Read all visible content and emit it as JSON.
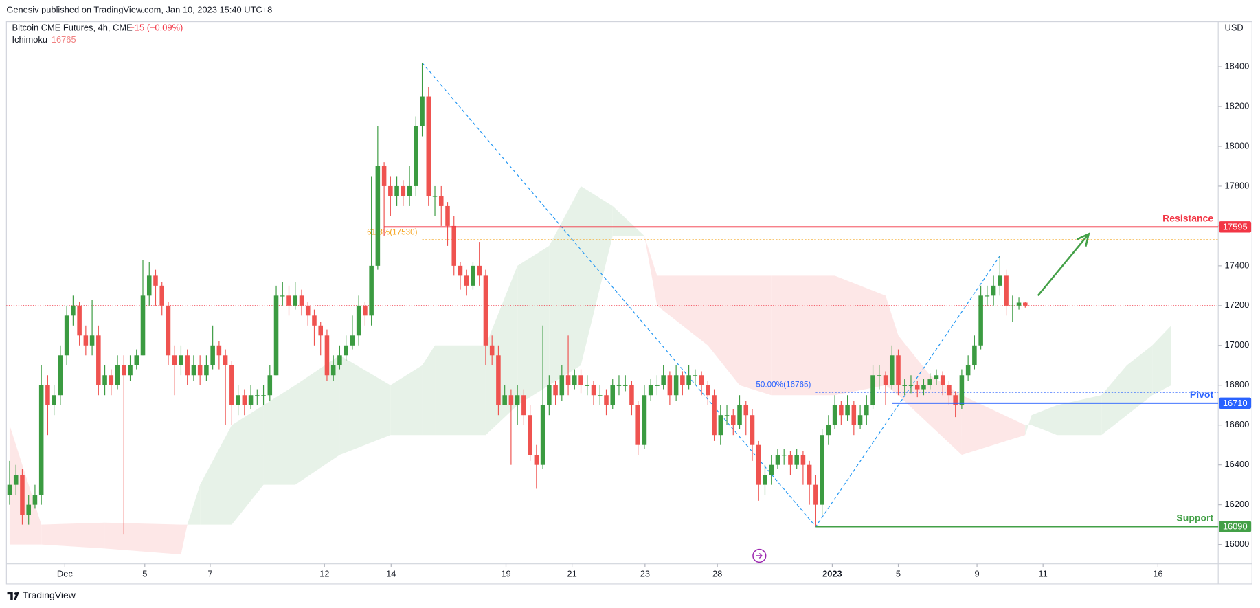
{
  "header": {
    "publisher": "Genesiv published on TradingView.com, Jan 10, 2023 15:40 UTC+8"
  },
  "chart_data": {
    "type": "candlestick",
    "title": "Bitcoin CME Futures, 4h, CME",
    "change": "−15 (−0.09%)",
    "indicator": {
      "name": "Ichimoku",
      "value": 16765
    },
    "currency": "USD",
    "up_color": "#3b9b41",
    "down_color": "#ef5350",
    "candles": [
      [
        16250,
        16420,
        16200,
        16300
      ],
      [
        16300,
        16400,
        16250,
        16350
      ],
      [
        16350,
        16380,
        16100,
        16150
      ],
      [
        16150,
        16250,
        16100,
        16200
      ],
      [
        16200,
        16300,
        16180,
        16250
      ],
      [
        16250,
        16900,
        16200,
        16800
      ],
      [
        16800,
        16850,
        16550,
        16700
      ],
      [
        16700,
        16800,
        16650,
        16750
      ],
      [
        16750,
        17000,
        16700,
        16950
      ],
      [
        16950,
        17200,
        16900,
        17150
      ],
      [
        17150,
        17250,
        17100,
        17200
      ],
      [
        17200,
        17220,
        17000,
        17050
      ],
      [
        17050,
        17100,
        16950,
        17000
      ],
      [
        17000,
        17230,
        16950,
        17050
      ],
      [
        17050,
        17100,
        16750,
        16800
      ],
      [
        16800,
        16900,
        16750,
        16850
      ],
      [
        16850,
        16880,
        16750,
        16800
      ],
      [
        16800,
        16950,
        16780,
        16900
      ],
      [
        16900,
        16950,
        16050,
        16850
      ],
      [
        16850,
        16950,
        16820,
        16900
      ],
      [
        16900,
        16980,
        16880,
        16950
      ],
      [
        16950,
        17430,
        16950,
        17250
      ],
      [
        17250,
        17420,
        17200,
        17350
      ],
      [
        17350,
        17380,
        17200,
        17300
      ],
      [
        17300,
        17320,
        17150,
        17200
      ],
      [
        17200,
        17220,
        16900,
        16950
      ],
      [
        16950,
        17000,
        16750,
        16900
      ],
      [
        16900,
        17000,
        16850,
        16950
      ],
      [
        16950,
        16980,
        16800,
        16850
      ],
      [
        16850,
        16950,
        16820,
        16900
      ],
      [
        16900,
        16950,
        16800,
        16850
      ],
      [
        16850,
        16950,
        16820,
        16900
      ],
      [
        16900,
        17100,
        16880,
        17000
      ],
      [
        17000,
        17020,
        16880,
        16950
      ],
      [
        16950,
        16980,
        16600,
        16900
      ],
      [
        16900,
        16920,
        16600,
        16700
      ],
      [
        16700,
        16800,
        16650,
        16750
      ],
      [
        16750,
        16780,
        16650,
        16700
      ],
      [
        16700,
        16800,
        16680,
        16750
      ],
      [
        16750,
        16780,
        16700,
        16750
      ],
      [
        16750,
        16800,
        16700,
        16750
      ],
      [
        16750,
        16900,
        16720,
        16850
      ],
      [
        16850,
        17300,
        16850,
        17250
      ],
      [
        17250,
        17320,
        17200,
        17250
      ],
      [
        17250,
        17300,
        17150,
        17200
      ],
      [
        17200,
        17320,
        17180,
        17250
      ],
      [
        17250,
        17280,
        17150,
        17200
      ],
      [
        17200,
        17220,
        17100,
        17150
      ],
      [
        17150,
        17180,
        17000,
        17100
      ],
      [
        17100,
        17120,
        16950,
        17050
      ],
      [
        17050,
        17080,
        16820,
        16850
      ],
      [
        16850,
        16950,
        16820,
        16900
      ],
      [
        16900,
        17000,
        16880,
        16950
      ],
      [
        16950,
        17050,
        16920,
        17000
      ],
      [
        17000,
        17150,
        16980,
        17050
      ],
      [
        17050,
        17250,
        17000,
        17200
      ],
      [
        17200,
        17220,
        17100,
        17150
      ],
      [
        17150,
        17850,
        17100,
        17400
      ],
      [
        17400,
        18100,
        17380,
        17900
      ],
      [
        17900,
        17920,
        17550,
        17800
      ],
      [
        17800,
        17850,
        17650,
        17750
      ],
      [
        17750,
        17850,
        17700,
        17800
      ],
      [
        17800,
        17830,
        17700,
        17750
      ],
      [
        17750,
        17900,
        17700,
        17800
      ],
      [
        17800,
        18150,
        17750,
        18100
      ],
      [
        18100,
        18420,
        18050,
        18250
      ],
      [
        18250,
        18300,
        17700,
        17750
      ],
      [
        17750,
        17800,
        17650,
        17750
      ],
      [
        17750,
        17800,
        17600,
        17700
      ],
      [
        17700,
        17720,
        17500,
        17600
      ],
      [
        17600,
        17650,
        17350,
        17400
      ],
      [
        17400,
        17420,
        17280,
        17350
      ],
      [
        17350,
        17380,
        17250,
        17300
      ],
      [
        17300,
        17420,
        17280,
        17400
      ],
      [
        17400,
        17520,
        17300,
        17350
      ],
      [
        17350,
        17380,
        16900,
        17000
      ],
      [
        17000,
        17050,
        16900,
        16950
      ],
      [
        16950,
        17000,
        16650,
        16700
      ],
      [
        16700,
        16800,
        16700,
        16750
      ],
      [
        16750,
        16780,
        16400,
        16700
      ],
      [
        16700,
        16800,
        16600,
        16750
      ],
      [
        16750,
        16780,
        16600,
        16650
      ],
      [
        16650,
        16700,
        16420,
        16450
      ],
      [
        16450,
        16500,
        16280,
        16400
      ],
      [
        16400,
        17100,
        16380,
        16700
      ],
      [
        16700,
        16850,
        16650,
        16800
      ],
      [
        16800,
        16820,
        16700,
        16750
      ],
      [
        16750,
        16900,
        16720,
        16850
      ],
      [
        16850,
        17050,
        16750,
        16800
      ],
      [
        16800,
        16880,
        16780,
        16850
      ],
      [
        16850,
        16880,
        16760,
        16800
      ],
      [
        16800,
        16850,
        16750,
        16800
      ],
      [
        16800,
        16820,
        16700,
        16750
      ],
      [
        16750,
        16800,
        16700,
        16750
      ],
      [
        16750,
        16780,
        16650,
        16700
      ],
      [
        16700,
        16830,
        16680,
        16800
      ],
      [
        16800,
        16850,
        16750,
        16800
      ],
      [
        16800,
        16850,
        16770,
        16800
      ],
      [
        16800,
        16820,
        16650,
        16700
      ],
      [
        16700,
        16720,
        16450,
        16500
      ],
      [
        16500,
        16800,
        16480,
        16750
      ],
      [
        16750,
        16830,
        16720,
        16800
      ],
      [
        16800,
        16850,
        16750,
        16800
      ],
      [
        16800,
        16900,
        16780,
        16850
      ],
      [
        16850,
        16870,
        16700,
        16750
      ],
      [
        16750,
        16900,
        16720,
        16850
      ],
      [
        16850,
        16870,
        16750,
        16800
      ],
      [
        16800,
        16900,
        16780,
        16850
      ],
      [
        16850,
        16880,
        16800,
        16850
      ],
      [
        16850,
        16870,
        16750,
        16800
      ],
      [
        16800,
        16820,
        16700,
        16750
      ],
      [
        16750,
        16780,
        16520,
        16550
      ],
      [
        16550,
        16700,
        16500,
        16650
      ],
      [
        16650,
        16700,
        16600,
        16650
      ],
      [
        16650,
        16680,
        16550,
        16600
      ],
      [
        16600,
        16750,
        16580,
        16700
      ],
      [
        16700,
        16720,
        16550,
        16650
      ],
      [
        16650,
        16680,
        16420,
        16500
      ],
      [
        16500,
        16520,
        16220,
        16300
      ],
      [
        16300,
        16400,
        16250,
        16350
      ],
      [
        16350,
        16450,
        16300,
        16400
      ],
      [
        16400,
        16480,
        16380,
        16450
      ],
      [
        16450,
        16480,
        16400,
        16450
      ],
      [
        16450,
        16470,
        16350,
        16400
      ],
      [
        16400,
        16480,
        16380,
        16450
      ],
      [
        16450,
        16470,
        16300,
        16400
      ],
      [
        16400,
        16420,
        16200,
        16300
      ],
      [
        16300,
        16350,
        16090,
        16200
      ],
      [
        16200,
        16580,
        16150,
        16550
      ],
      [
        16550,
        16650,
        16500,
        16600
      ],
      [
        16600,
        16750,
        16580,
        16700
      ],
      [
        16700,
        16720,
        16600,
        16650
      ],
      [
        16650,
        16750,
        16620,
        16700
      ],
      [
        16700,
        16720,
        16550,
        16600
      ],
      [
        16600,
        16700,
        16580,
        16650
      ],
      [
        16650,
        16750,
        16600,
        16700
      ],
      [
        16700,
        16900,
        16680,
        16850
      ],
      [
        16850,
        16900,
        16780,
        16850
      ],
      [
        16850,
        16870,
        16700,
        16800
      ],
      [
        16800,
        17000,
        16780,
        16950
      ],
      [
        16950,
        16980,
        16750,
        16800
      ],
      [
        16800,
        16830,
        16750,
        16800
      ],
      [
        16800,
        16850,
        16760,
        16800
      ],
      [
        16800,
        16820,
        16740,
        16780
      ],
      [
        16780,
        16830,
        16750,
        16800
      ],
      [
        16800,
        16860,
        16780,
        16830
      ],
      [
        16830,
        16880,
        16800,
        16850
      ],
      [
        16850,
        16870,
        16750,
        16800
      ],
      [
        16800,
        16820,
        16700,
        16750
      ],
      [
        16750,
        16770,
        16640,
        16700
      ],
      [
        16700,
        16880,
        16680,
        16850
      ],
      [
        16850,
        16950,
        16820,
        16900
      ],
      [
        16900,
        17050,
        16880,
        17000
      ],
      [
        17000,
        17300,
        16980,
        17250
      ],
      [
        17250,
        17300,
        17200,
        17250
      ],
      [
        17250,
        17350,
        17200,
        17300
      ],
      [
        17300,
        17450,
        17250,
        17350
      ],
      [
        17350,
        17380,
        17150,
        17200
      ],
      [
        17200,
        17250,
        17120,
        17200
      ],
      [
        17200,
        17240,
        17180,
        17215
      ],
      [
        17215,
        17220,
        17190,
        17200
      ]
    ],
    "xlim": [
      -0.5,
      190.4
    ],
    "xticks": [
      {
        "value": 8.7,
        "label": "Dec"
      },
      {
        "value": 21.3,
        "label": "5"
      },
      {
        "value": 31.6,
        "label": "7"
      },
      {
        "value": 49.6,
        "label": "12"
      },
      {
        "value": 60.1,
        "label": "14"
      },
      {
        "value": 78.2,
        "label": "19"
      },
      {
        "value": 88.6,
        "label": "21"
      },
      {
        "value": 100.1,
        "label": "23"
      },
      {
        "value": 111.5,
        "label": "28"
      },
      {
        "value": 129.6,
        "label": "2023"
      },
      {
        "value": 140,
        "label": "5"
      },
      {
        "value": 152.4,
        "label": "9"
      },
      {
        "value": 162.8,
        "label": "11"
      },
      {
        "value": 180.9,
        "label": "16"
      }
    ],
    "ylim": [
      15903,
      18626
    ],
    "yticks": [
      16000,
      16200,
      16400,
      16600,
      16800,
      17000,
      17200,
      17400,
      17600,
      17800,
      18000,
      18200,
      18400
    ],
    "last_price": 17200,
    "cloud": {
      "index": [
        0,
        5,
        15,
        27,
        28,
        30,
        35,
        40,
        45,
        52,
        60,
        65,
        67,
        75,
        80,
        85,
        90,
        95,
        100,
        102,
        110,
        115,
        120,
        130,
        138,
        140,
        145,
        150,
        160,
        161,
        165,
        172,
        176,
        180,
        183
      ],
      "span_a": [
        16000,
        16000,
        15980,
        15950,
        16100,
        16300,
        16600,
        16700,
        16800,
        16950,
        16800,
        16900,
        17000,
        17000,
        17400,
        17500,
        17800,
        17700,
        17550,
        17200,
        17000,
        16800,
        16750,
        16750,
        16800,
        16750,
        16600,
        16450,
        16550,
        16650,
        16700,
        16750,
        16900,
        17000,
        17100
      ],
      "span_b": [
        16600,
        16100,
        16110,
        16100,
        16100,
        16100,
        16100,
        16300,
        16300,
        16450,
        16550,
        16550,
        16550,
        16550,
        16700,
        16800,
        16900,
        17550,
        17550,
        17350,
        17350,
        17350,
        17350,
        17350,
        17250,
        17050,
        16850,
        16750,
        16600,
        16600,
        16550,
        16550,
        16650,
        16750,
        16800
      ],
      "up_color": "#e7f2e8",
      "down_color": "#fde7e7"
    },
    "lines": [
      {
        "name": "Resistance",
        "value": 17595,
        "start": 59,
        "color": "#f23645"
      },
      {
        "name": "Pivot",
        "value": 16710,
        "start": 139,
        "color": "#2962ff"
      },
      {
        "name": "Support",
        "value": 16090,
        "start": 127,
        "color": "#43a047"
      }
    ],
    "fib_levels": [
      {
        "label": "61.8%(17530)",
        "value": 17530,
        "start": 65,
        "color": "#f5a623"
      },
      {
        "label": "50.00%(16765)",
        "value": 16765,
        "start": 127,
        "color": "#2962ff"
      }
    ],
    "trend": {
      "index": [
        65,
        127,
        156
      ],
      "price": [
        18420,
        16090,
        17450
      ],
      "color": "#2196f3"
    },
    "arrow": {
      "index": [
        162,
        170
      ],
      "price": [
        17250,
        17560
      ],
      "color": "#43a047"
    }
  },
  "footer": {
    "brand": "TradingView"
  }
}
